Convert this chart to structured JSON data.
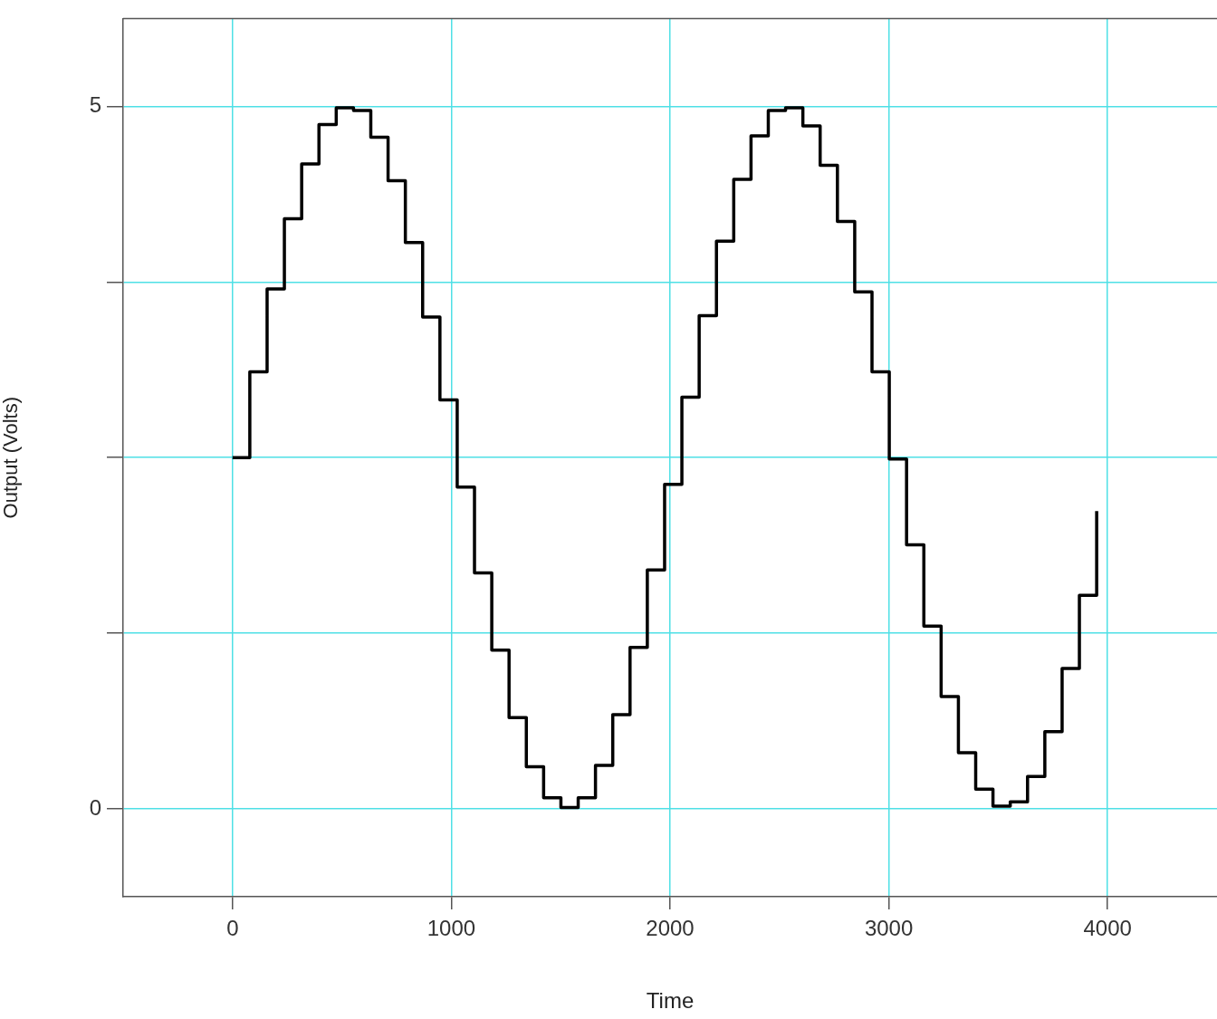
{
  "chart_data": {
    "type": "step",
    "xlabel": "Time",
    "ylabel": "Output (Volts)",
    "x": [
      0,
      79,
      158,
      237,
      316,
      395,
      474,
      553,
      632,
      711,
      790,
      869,
      948,
      1027,
      1106,
      1185,
      1264,
      1343,
      1422,
      1501,
      1580,
      1659,
      1738,
      1817,
      1896,
      1975,
      2054,
      2133,
      2212,
      2291,
      2370,
      2449,
      2528,
      2607,
      2686,
      2765,
      2844,
      2923,
      3002,
      3081,
      3160,
      3239,
      3318,
      3397,
      3476,
      3555,
      3634,
      3713,
      3792,
      3871,
      3950
    ],
    "values": [
      2.5,
      3.11,
      3.7,
      4.2,
      4.59,
      4.87,
      4.99,
      4.97,
      4.78,
      4.47,
      4.03,
      3.5,
      2.91,
      2.29,
      1.68,
      1.13,
      0.65,
      0.3,
      0.08,
      0.01,
      0.08,
      0.31,
      0.67,
      1.15,
      1.7,
      2.31,
      2.93,
      3.51,
      4.04,
      4.48,
      4.79,
      4.97,
      4.99,
      4.86,
      4.58,
      4.18,
      3.68,
      3.11,
      2.49,
      1.88,
      1.3,
      0.8,
      0.4,
      0.14,
      0.02,
      0.05,
      0.23,
      0.55,
      1.0,
      1.52,
      2.12
    ],
    "color": "#000000",
    "xlim": [
      -500,
      4500
    ],
    "xticks": [
      0,
      1000,
      2000,
      3000,
      4000
    ],
    "ylim": [
      -0.625,
      5.625
    ],
    "yticks": [
      0,
      {
        "value": 1.25,
        "label": null
      },
      {
        "value": 2.5,
        "label": null
      },
      {
        "value": 3.75,
        "label": null
      },
      5
    ],
    "grid": true
  }
}
